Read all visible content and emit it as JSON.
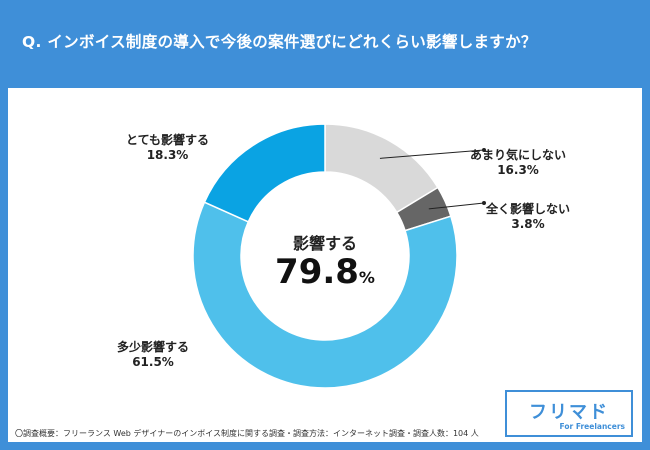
{
  "header": {
    "title": "Q. インボイス制度の導入で今後の案件選びにどれくらい影響しますか？"
  },
  "chart_data": {
    "type": "pie",
    "title": "Q. インボイス制度の導入で今後の案件選びにどれくらい影響しますか？",
    "center_label": "影響する",
    "center_value": "79.8",
    "center_unit": "%",
    "slices": [
      {
        "name": "あまり気にしない",
        "value": 16.3,
        "label": "16.3%",
        "color": "#d9d9d9"
      },
      {
        "name": "全く影響しない",
        "value": 3.8,
        "label": "3.8%",
        "color": "#666666"
      },
      {
        "name": "多少影響する",
        "value": 61.5,
        "label": "61.5%",
        "color": "#4fc0eb"
      },
      {
        "name": "とても影響する",
        "value": 18.3,
        "label": "18.3%",
        "color": "#0aa3e3"
      }
    ]
  },
  "footnote": "〇調査概要：フリーランス Web デザイナーのインボイス制度に関する調査・調査方法：インターネット調査・調査人数：104 人",
  "logo": {
    "text": "フリマド",
    "sub": "For Freelancers"
  }
}
